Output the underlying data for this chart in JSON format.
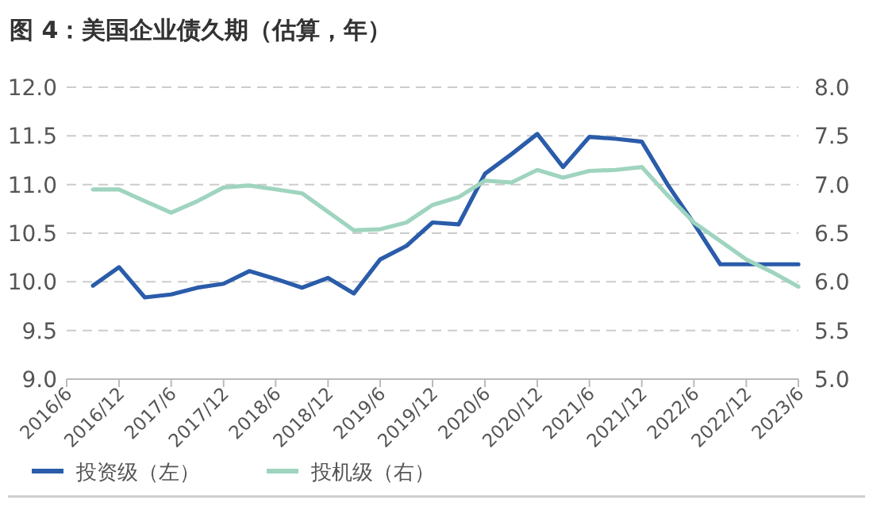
{
  "chart_data": {
    "type": "line",
    "title": "图 4：美国企业债久期（估算，年）",
    "x": [
      "2016-09",
      "2016-12",
      "2017-03",
      "2017-06",
      "2017-09",
      "2017-12",
      "2018-03",
      "2018-06",
      "2018-09",
      "2018-12",
      "2019-03",
      "2019-06",
      "2019-09",
      "2019-12",
      "2020-03",
      "2020-06",
      "2020-09",
      "2020-12",
      "2021-03",
      "2021-06",
      "2021-09",
      "2021-12",
      "2022-03",
      "2022-06",
      "2022-09",
      "2022-12",
      "2023-03",
      "2023-06"
    ],
    "series": [
      {
        "name": "投资级（左）",
        "color": "#2a5caa",
        "values": [
          9.96,
          10.15,
          9.84,
          9.87,
          9.94,
          9.98,
          10.11,
          10.03,
          9.94,
          10.04,
          9.88,
          10.23,
          10.37,
          10.61,
          10.59,
          11.11,
          11.31,
          11.52,
          11.18,
          11.49,
          11.47,
          11.44,
          11.0,
          10.6,
          10.18,
          10.18,
          10.18,
          10.18
        ]
      },
      {
        "name": "投机级（右）",
        "color": "#9fd4bf",
        "axis": "y2",
        "values": [
          6.95,
          6.95,
          6.83,
          6.71,
          6.83,
          6.97,
          6.99,
          6.95,
          6.91,
          6.72,
          6.53,
          6.54,
          6.61,
          6.79,
          6.87,
          7.04,
          7.02,
          7.15,
          7.07,
          7.14,
          7.15,
          7.18,
          6.89,
          6.61,
          6.42,
          6.23,
          6.1,
          5.95
        ]
      }
    ],
    "xlim": [
      "2016-06",
      "2023-06"
    ],
    "xticks": [
      {
        "value": "2016-06",
        "label": "2016/6"
      },
      {
        "value": "2016-12",
        "label": "2016/12"
      },
      {
        "value": "2017-06",
        "label": "2017/6"
      },
      {
        "value": "2017-12",
        "label": "2017/12"
      },
      {
        "value": "2018-06",
        "label": "2018/6"
      },
      {
        "value": "2018-12",
        "label": "2018/12"
      },
      {
        "value": "2019-06",
        "label": "2019/6"
      },
      {
        "value": "2019-12",
        "label": "2019/12"
      },
      {
        "value": "2020-06",
        "label": "2020/6"
      },
      {
        "value": "2020-12",
        "label": "2020/12"
      },
      {
        "value": "2021-06",
        "label": "2021/6"
      },
      {
        "value": "2021-12",
        "label": "2021/12"
      },
      {
        "value": "2022-06",
        "label": "2022/6"
      },
      {
        "value": "2022-12",
        "label": "2022/12"
      },
      {
        "value": "2023-06",
        "label": "2023/6"
      }
    ],
    "ylim": [
      9,
      12
    ],
    "yticks": [
      {
        "value": 9,
        "label": "9.0"
      },
      {
        "value": 9.5,
        "label": "9.5"
      },
      {
        "value": 10,
        "label": "10.0"
      },
      {
        "value": 10.5,
        "label": "10.5"
      },
      {
        "value": 11,
        "label": "11.0"
      },
      {
        "value": 11.5,
        "label": "11.5"
      },
      {
        "value": 12,
        "label": "12.0"
      }
    ],
    "y2lim": [
      5,
      8
    ],
    "y2ticks": [
      {
        "value": 5,
        "label": "5.0"
      },
      {
        "value": 5.5,
        "label": "5.5"
      },
      {
        "value": 6,
        "label": "6.0"
      },
      {
        "value": 6.5,
        "label": "6.5"
      },
      {
        "value": 7,
        "label": "7.0"
      },
      {
        "value": 7.5,
        "label": "7.5"
      },
      {
        "value": 8,
        "label": "8.0"
      }
    ],
    "grid": "y",
    "legend": "bottom",
    "marker": "none",
    "line_style": "solid"
  }
}
